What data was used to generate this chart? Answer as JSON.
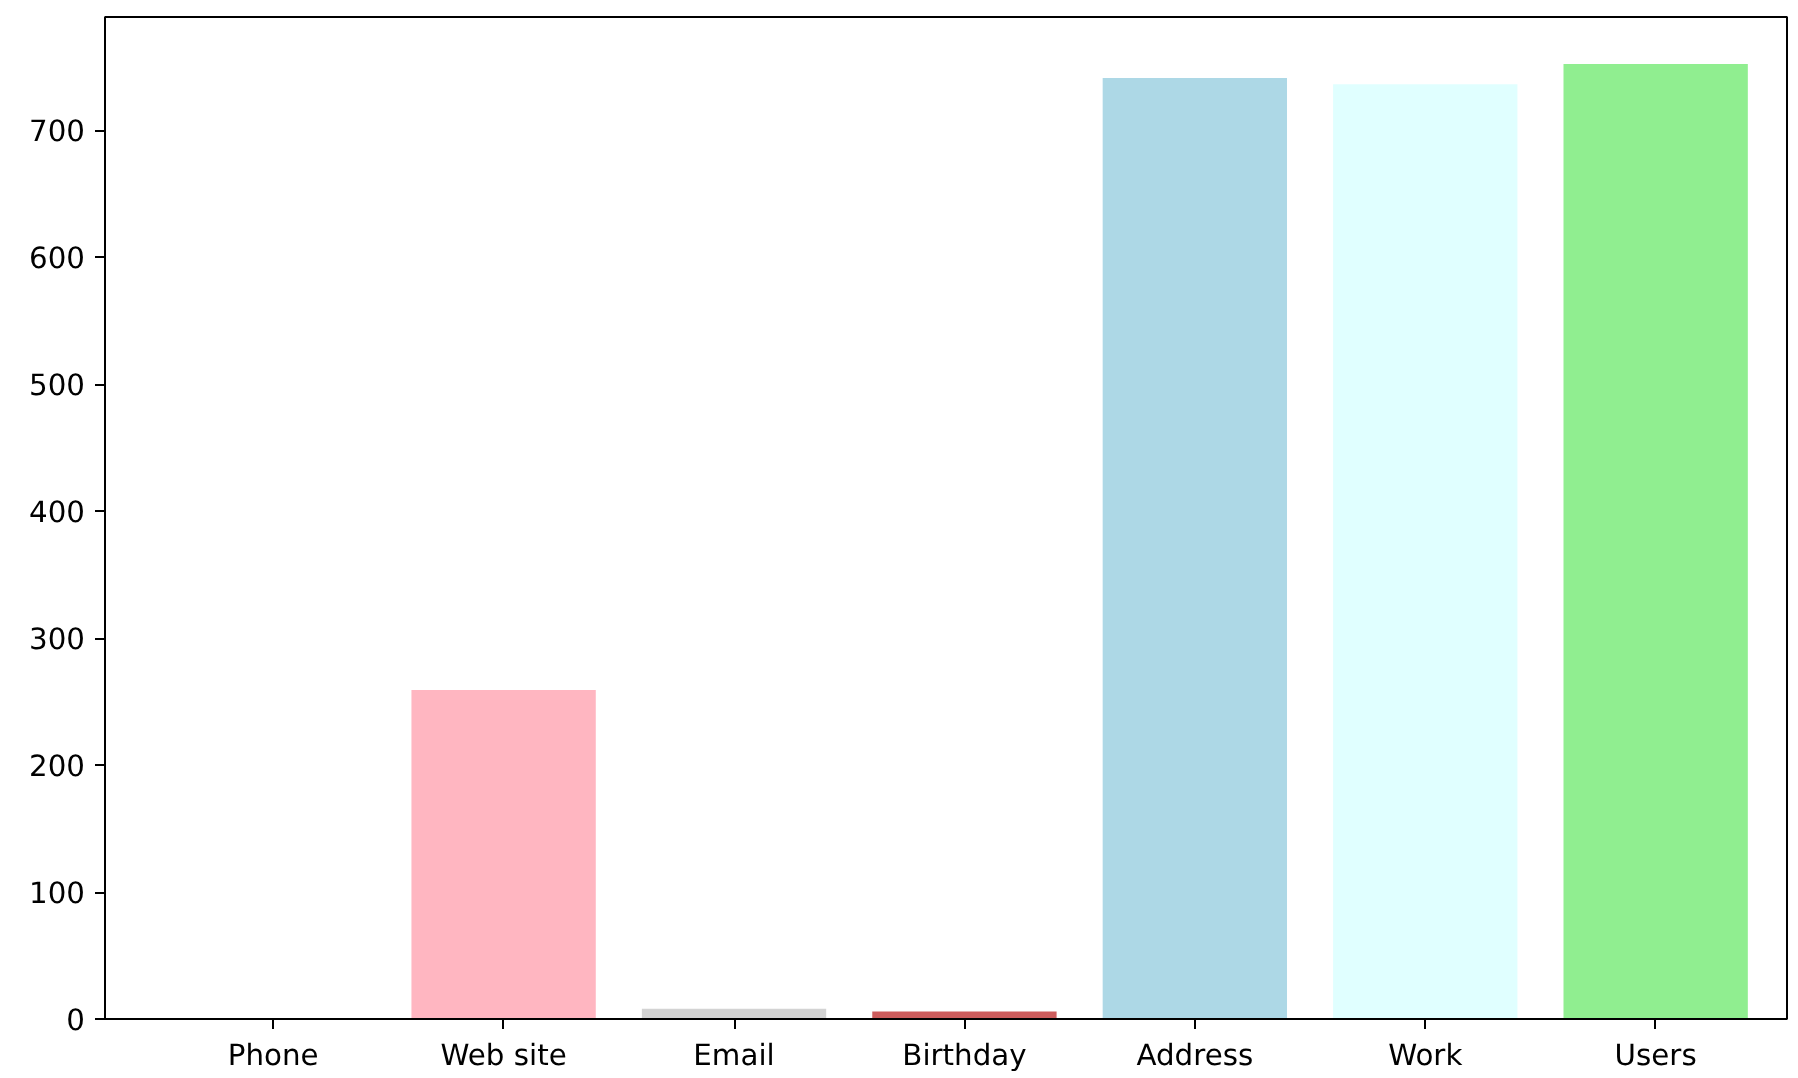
{
  "chart_data": {
    "type": "bar",
    "categories": [
      "Phone",
      "Web site",
      "Email",
      "Birthday",
      "Address",
      "Work",
      "Users"
    ],
    "values": [
      0,
      259,
      8,
      6,
      741,
      736,
      752
    ],
    "colors": [
      null,
      "#ffb6c1",
      "#d3d3d3",
      "#cd5c5c",
      "#add8e6",
      "#e0ffff",
      "#90ee90"
    ],
    "ylim": [
      0,
      789
    ],
    "yticks": [
      0,
      100,
      200,
      300,
      400,
      500,
      600,
      700
    ],
    "grid": false
  }
}
